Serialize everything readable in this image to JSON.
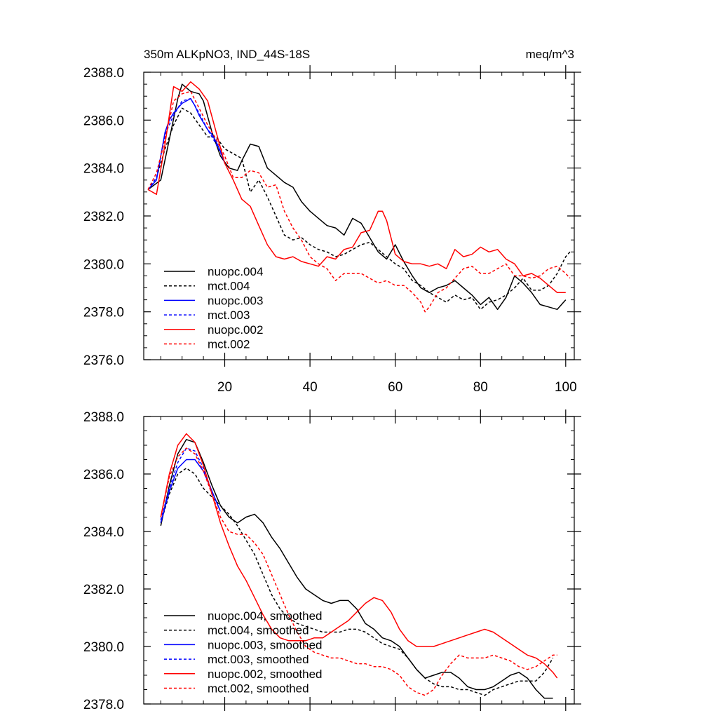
{
  "chart_data": [
    {
      "type": "line",
      "title": "350m ALKpNO3, IND_44S-18S",
      "units": "meq/m^3",
      "xlim": [
        1,
        102
      ],
      "ylim": [
        2376,
        2388
      ],
      "x_ticks": [
        20,
        40,
        60,
        80,
        100
      ],
      "x_tick_labels": [
        "20",
        "40",
        "60",
        "80",
        "100"
      ],
      "y_ticks": [
        2376,
        2378,
        2380,
        2382,
        2384,
        2386,
        2388
      ],
      "y_tick_labels": [
        "2376.0",
        "2378.0",
        "2380.0",
        "2382.0",
        "2384.0",
        "2386.0",
        "2388.0"
      ],
      "legend": "bottom-left",
      "series": [
        {
          "name": "nuopc.004",
          "color": "#000000",
          "dash": false,
          "x": [
            2,
            5,
            7,
            9,
            10,
            12,
            14,
            15,
            17,
            19,
            21,
            23,
            24,
            26,
            28,
            30,
            32,
            34,
            36,
            38,
            40,
            42,
            44,
            46,
            48,
            50,
            52,
            54,
            56,
            58,
            60,
            62,
            64,
            66,
            68,
            70,
            72,
            74,
            76,
            78,
            80,
            82,
            84,
            86,
            88,
            90,
            92,
            94,
            96,
            98,
            100
          ],
          "y": [
            2383.1,
            2383.5,
            2385.2,
            2386.9,
            2387.5,
            2387.2,
            2387.1,
            2386.8,
            2385.5,
            2384.5,
            2384.0,
            2383.9,
            2384.3,
            2385.0,
            2384.9,
            2384.0,
            2383.7,
            2383.4,
            2383.2,
            2382.6,
            2382.2,
            2381.9,
            2381.6,
            2381.5,
            2381.2,
            2381.9,
            2381.7,
            2381.1,
            2380.5,
            2380.2,
            2380.8,
            2380.1,
            2379.5,
            2379.0,
            2378.8,
            2379.0,
            2379.1,
            2379.3,
            2379.0,
            2378.7,
            2378.3,
            2378.6,
            2378.1,
            2378.6,
            2379.5,
            2379.2,
            2378.8,
            2378.3,
            2378.2,
            2378.1,
            2378.5
          ]
        },
        {
          "name": "mct.004",
          "color": "#000000",
          "dash": true,
          "x": [
            2,
            4,
            6,
            8,
            10,
            12,
            14,
            16,
            18,
            20,
            22,
            24,
            26,
            28,
            30,
            32,
            34,
            36,
            38,
            40,
            42,
            44,
            46,
            48,
            50,
            52,
            54,
            56,
            58,
            60,
            62,
            64,
            66,
            68,
            70,
            72,
            74,
            76,
            78,
            80,
            82,
            84,
            86,
            88,
            90,
            92,
            94,
            96,
            98,
            100,
            101
          ],
          "y": [
            2383.1,
            2383.6,
            2384.8,
            2385.8,
            2386.5,
            2386.3,
            2385.8,
            2385.3,
            2385.3,
            2384.8,
            2384.6,
            2384.4,
            2383.0,
            2383.5,
            2382.8,
            2382.0,
            2381.2,
            2381.0,
            2381.1,
            2380.8,
            2380.6,
            2380.5,
            2380.3,
            2380.4,
            2380.6,
            2380.8,
            2380.9,
            2380.6,
            2380.3,
            2380.0,
            2379.8,
            2379.3,
            2379.1,
            2378.8,
            2378.6,
            2378.4,
            2378.7,
            2378.5,
            2378.6,
            2378.1,
            2378.4,
            2378.5,
            2378.7,
            2379.0,
            2379.4,
            2378.9,
            2378.9,
            2379.1,
            2379.6,
            2380.3,
            2380.5
          ]
        },
        {
          "name": "nuopc.003",
          "color": "#0000ff",
          "dash": false,
          "x": [
            2,
            4,
            6,
            7,
            8,
            9,
            10,
            11,
            12,
            13,
            14,
            15,
            16,
            17,
            18,
            19,
            20
          ],
          "y": [
            2383.1,
            2383.5,
            2385.5,
            2386.0,
            2386.3,
            2386.5,
            2386.7,
            2386.8,
            2386.9,
            2386.6,
            2386.2,
            2385.9,
            2385.6,
            2385.4,
            2385.1,
            2384.7,
            2384.2
          ]
        },
        {
          "name": "mct.003",
          "color": "#0000ff",
          "dash": true,
          "x": [
            2,
            4,
            6,
            8,
            10,
            12,
            14,
            16,
            18,
            20
          ],
          "y": [
            2383.1,
            2383.6,
            2385.4,
            2386.2,
            2386.8,
            2386.9,
            2386.3,
            2385.6,
            2385.0,
            2384.3
          ]
        },
        {
          "name": "nuopc.002",
          "color": "#ff0000",
          "dash": false,
          "x": [
            2,
            4,
            6,
            8,
            10,
            12,
            14,
            16,
            18,
            20,
            22,
            24,
            26,
            28,
            30,
            32,
            34,
            36,
            38,
            40,
            42,
            44,
            46,
            48,
            50,
            52,
            54,
            56,
            57,
            58,
            60,
            62,
            64,
            66,
            68,
            70,
            72,
            74,
            76,
            78,
            80,
            82,
            84,
            86,
            88,
            90,
            92,
            94,
            96,
            98,
            100
          ],
          "y": [
            2383.1,
            2382.9,
            2385.0,
            2387.4,
            2387.2,
            2387.6,
            2387.3,
            2386.8,
            2385.5,
            2384.2,
            2383.5,
            2382.7,
            2382.4,
            2381.6,
            2380.8,
            2380.3,
            2380.2,
            2380.3,
            2380.1,
            2380.0,
            2379.9,
            2380.3,
            2380.2,
            2380.6,
            2380.7,
            2381.3,
            2381.4,
            2382.2,
            2382.2,
            2381.8,
            2380.4,
            2380.1,
            2380.0,
            2380.0,
            2379.9,
            2380.0,
            2379.8,
            2380.6,
            2380.3,
            2380.4,
            2380.7,
            2380.5,
            2380.6,
            2380.2,
            2380.0,
            2379.5,
            2379.6,
            2379.4,
            2379.1,
            2378.8,
            2378.8
          ]
        },
        {
          "name": "mct.002",
          "color": "#ff0000",
          "dash": true,
          "x": [
            2,
            4,
            6,
            8,
            10,
            12,
            14,
            16,
            18,
            20,
            22,
            24,
            26,
            28,
            30,
            32,
            34,
            36,
            38,
            40,
            42,
            44,
            46,
            48,
            50,
            52,
            54,
            56,
            58,
            60,
            62,
            64,
            66,
            67,
            68,
            70,
            72,
            74,
            76,
            78,
            80,
            82,
            84,
            86,
            88,
            90,
            92,
            94,
            96,
            98,
            100,
            101
          ],
          "y": [
            2383.1,
            2383.8,
            2385.2,
            2386.8,
            2387.1,
            2387.2,
            2386.5,
            2385.8,
            2385.2,
            2384.5,
            2383.6,
            2383.6,
            2383.9,
            2383.8,
            2383.2,
            2383.3,
            2382.2,
            2381.5,
            2381.0,
            2380.3,
            2380.0,
            2379.8,
            2379.3,
            2379.6,
            2379.6,
            2379.6,
            2379.4,
            2379.2,
            2379.3,
            2379.1,
            2379.1,
            2378.8,
            2378.4,
            2378.0,
            2378.2,
            2378.8,
            2379.0,
            2379.4,
            2379.8,
            2379.9,
            2379.6,
            2379.6,
            2379.8,
            2380.0,
            2379.5,
            2379.5,
            2379.4,
            2379.5,
            2379.8,
            2379.9,
            2379.6,
            2379.4
          ]
        }
      ]
    },
    {
      "type": "line",
      "title": "",
      "units": "",
      "xlim": [
        1,
        102
      ],
      "ylim": [
        2378,
        2388
      ],
      "x_ticks": [
        20,
        40,
        60,
        80,
        100
      ],
      "x_tick_labels": [
        "",
        "",
        "",
        "",
        ""
      ],
      "y_ticks": [
        2378,
        2380,
        2382,
        2384,
        2386,
        2388
      ],
      "y_tick_labels": [
        "2378.0",
        "2380.0",
        "2382.0",
        "2384.0",
        "2386.0",
        "2388.0"
      ],
      "legend": "bottom-left",
      "series": [
        {
          "name": "nuopc.004, smoothed",
          "color": "#000000",
          "dash": false,
          "x": [
            5,
            7,
            9,
            11,
            13,
            15,
            17,
            19,
            21,
            23,
            25,
            27,
            29,
            31,
            33,
            35,
            37,
            39,
            41,
            43,
            45,
            47,
            49,
            51,
            53,
            55,
            57,
            59,
            61,
            63,
            65,
            67,
            69,
            71,
            73,
            75,
            77,
            79,
            81,
            83,
            85,
            87,
            89,
            91,
            93,
            95,
            97
          ],
          "y": [
            2384.2,
            2385.6,
            2386.7,
            2387.2,
            2387.1,
            2386.4,
            2385.6,
            2384.9,
            2384.5,
            2384.3,
            2384.5,
            2384.6,
            2384.3,
            2383.8,
            2383.4,
            2382.9,
            2382.4,
            2382.0,
            2381.8,
            2381.6,
            2381.5,
            2381.6,
            2381.6,
            2381.3,
            2380.8,
            2380.6,
            2380.3,
            2380.2,
            2380.0,
            2379.6,
            2379.2,
            2378.9,
            2379.0,
            2379.1,
            2379.1,
            2378.9,
            2378.6,
            2378.5,
            2378.5,
            2378.6,
            2378.8,
            2379.0,
            2379.1,
            2378.9,
            2378.5,
            2378.2,
            2378.2
          ]
        },
        {
          "name": "mct.004, smoothed",
          "color": "#000000",
          "dash": true,
          "x": [
            5,
            7,
            9,
            11,
            13,
            15,
            17,
            19,
            21,
            23,
            25,
            27,
            29,
            31,
            33,
            35,
            37,
            39,
            41,
            43,
            45,
            47,
            49,
            51,
            53,
            55,
            57,
            59,
            61,
            63,
            65,
            67,
            69,
            71,
            73,
            75,
            77,
            79,
            81,
            83,
            85,
            87,
            89,
            91,
            93,
            95,
            97
          ],
          "y": [
            2384.3,
            2385.3,
            2386.0,
            2386.2,
            2386.0,
            2385.5,
            2385.2,
            2384.9,
            2384.6,
            2384.2,
            2383.7,
            2383.2,
            2382.5,
            2381.8,
            2381.3,
            2381.0,
            2380.8,
            2380.7,
            2380.6,
            2380.5,
            2380.5,
            2380.5,
            2380.6,
            2380.6,
            2380.5,
            2380.3,
            2380.1,
            2380.0,
            2379.9,
            2379.6,
            2379.2,
            2378.9,
            2378.7,
            2378.6,
            2378.6,
            2378.5,
            2378.5,
            2378.4,
            2378.3,
            2378.5,
            2378.6,
            2378.7,
            2378.8,
            2378.8,
            2378.8,
            2379.1,
            2379.6
          ]
        },
        {
          "name": "nuopc.003, smoothed",
          "color": "#0000ff",
          "dash": false,
          "x": [
            5,
            7,
            9,
            11,
            13,
            15,
            17,
            19
          ],
          "y": [
            2384.3,
            2385.4,
            2386.2,
            2386.5,
            2386.5,
            2386.1,
            2385.4,
            2384.7
          ]
        },
        {
          "name": "mct.003, smoothed",
          "color": "#0000ff",
          "dash": true,
          "x": [
            5,
            7,
            9,
            11,
            13,
            15,
            17,
            19
          ],
          "y": [
            2384.4,
            2385.5,
            2386.4,
            2386.9,
            2386.8,
            2386.2,
            2385.4,
            2384.7
          ]
        },
        {
          "name": "nuopc.002, smoothed",
          "color": "#ff0000",
          "dash": false,
          "x": [
            5,
            7,
            9,
            11,
            13,
            15,
            17,
            19,
            21,
            23,
            25,
            27,
            29,
            31,
            33,
            35,
            37,
            39,
            41,
            43,
            45,
            47,
            49,
            51,
            53,
            55,
            57,
            59,
            61,
            63,
            65,
            67,
            69,
            71,
            73,
            75,
            77,
            79,
            81,
            83,
            85,
            87,
            89,
            91,
            93,
            95,
            97,
            98
          ],
          "y": [
            2384.5,
            2386.0,
            2387.0,
            2387.4,
            2387.1,
            2386.3,
            2385.3,
            2384.3,
            2383.5,
            2382.8,
            2382.3,
            2381.7,
            2381.1,
            2380.6,
            2380.3,
            2380.2,
            2380.2,
            2380.2,
            2380.3,
            2380.3,
            2380.5,
            2380.7,
            2380.9,
            2381.2,
            2381.5,
            2381.7,
            2381.6,
            2381.2,
            2380.6,
            2380.2,
            2380.0,
            2380.0,
            2380.0,
            2380.1,
            2380.2,
            2380.3,
            2380.4,
            2380.5,
            2380.6,
            2380.5,
            2380.3,
            2380.1,
            2379.9,
            2379.7,
            2379.6,
            2379.4,
            2379.1,
            2378.9
          ]
        },
        {
          "name": "mct.002, smoothed",
          "color": "#ff0000",
          "dash": true,
          "x": [
            5,
            7,
            9,
            11,
            13,
            15,
            17,
            19,
            21,
            23,
            25,
            27,
            29,
            31,
            33,
            35,
            37,
            39,
            41,
            43,
            45,
            47,
            49,
            51,
            53,
            55,
            57,
            59,
            61,
            63,
            65,
            67,
            69,
            71,
            73,
            75,
            77,
            79,
            81,
            83,
            85,
            87,
            89,
            91,
            93,
            95,
            97,
            98
          ],
          "y": [
            2384.5,
            2385.9,
            2386.6,
            2386.9,
            2386.7,
            2386.1,
            2385.3,
            2384.5,
            2384.0,
            2383.9,
            2383.9,
            2383.6,
            2383.2,
            2382.5,
            2381.8,
            2381.1,
            2380.5,
            2380.0,
            2379.8,
            2379.7,
            2379.6,
            2379.6,
            2379.5,
            2379.4,
            2379.4,
            2379.3,
            2379.3,
            2379.2,
            2379.0,
            2378.6,
            2378.4,
            2378.3,
            2378.5,
            2379.0,
            2379.4,
            2379.7,
            2379.6,
            2379.6,
            2379.6,
            2379.7,
            2379.6,
            2379.5,
            2379.3,
            2379.2,
            2379.3,
            2379.5,
            2379.7,
            2379.7
          ]
        }
      ]
    }
  ]
}
